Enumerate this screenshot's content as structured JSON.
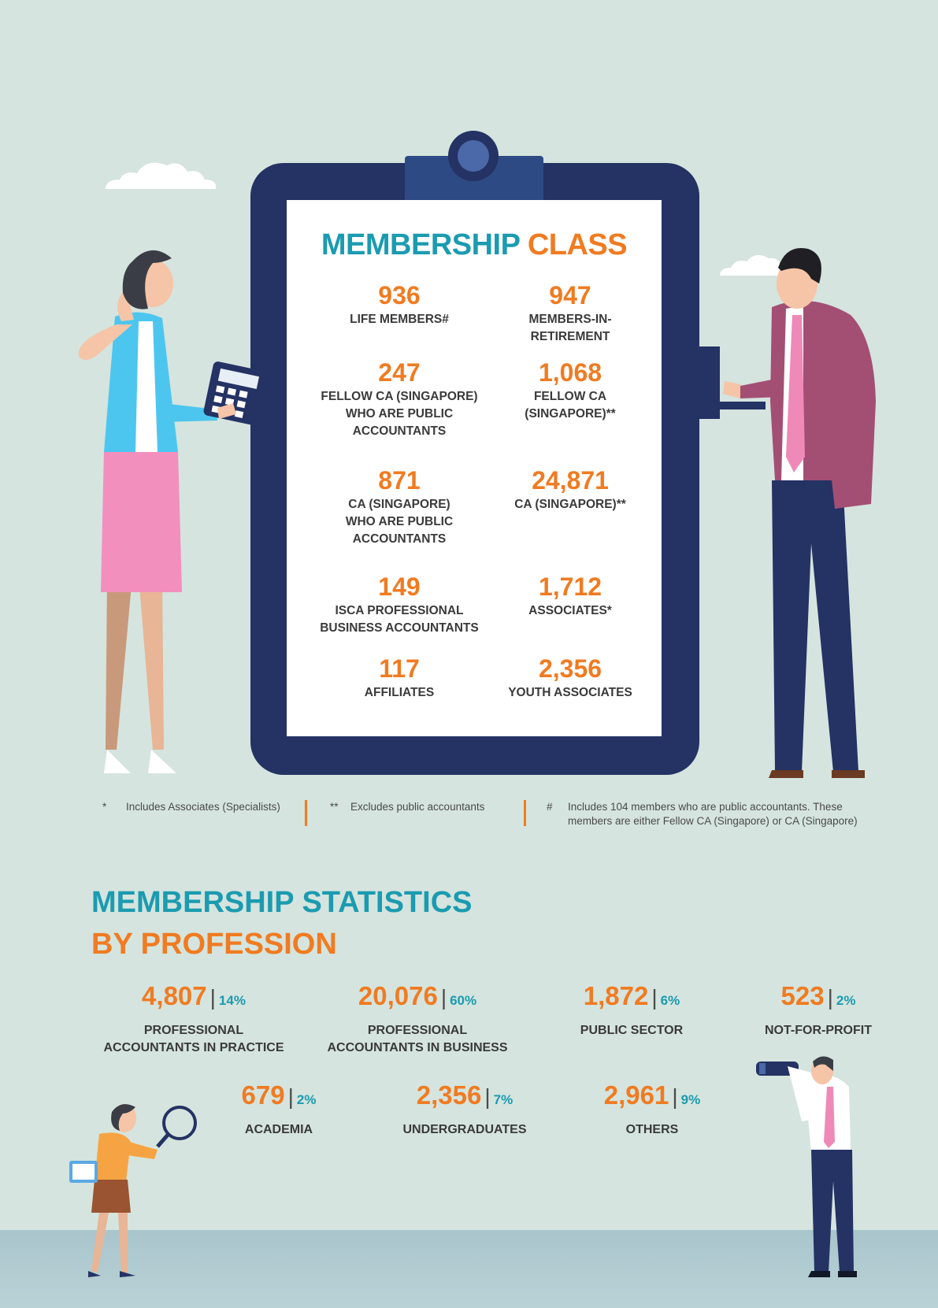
{
  "membership_class": {
    "title_part1": "MEMBERSHIP",
    "title_part2": "CLASS",
    "items": [
      {
        "value": "936",
        "label": "LIFE MEMBERS#"
      },
      {
        "value": "947",
        "label": "MEMBERS-IN-\nRETIREMENT"
      },
      {
        "value": "247",
        "label": "FELLOW CA (SINGAPORE)\nWHO ARE PUBLIC\nACCOUNTANTS"
      },
      {
        "value": "1,068",
        "label": "FELLOW CA\n(SINGAPORE)**"
      },
      {
        "value": "871",
        "label": "CA (SINGAPORE)\nWHO ARE PUBLIC\nACCOUNTANTS"
      },
      {
        "value": "24,871",
        "label": "CA (SINGAPORE)**"
      },
      {
        "value": "149",
        "label": "ISCA PROFESSIONAL\nBUSINESS ACCOUNTANTS"
      },
      {
        "value": "1,712",
        "label": "ASSOCIATES*"
      },
      {
        "value": "117",
        "label": "AFFILIATES"
      },
      {
        "value": "2,356",
        "label": "YOUTH ASSOCIATES"
      }
    ]
  },
  "footnotes": [
    {
      "mark": "*",
      "text": "Includes Associates (Specialists)"
    },
    {
      "mark": "**",
      "text": "Excludes public accountants"
    },
    {
      "mark": "#",
      "text": "Includes 104 members who are public accountants. These\nmembers are either Fellow CA (Singapore) or CA (Singapore)"
    }
  ],
  "profession": {
    "title_line1": "MEMBERSHIP STATISTICS",
    "title_line2": "BY PROFESSION",
    "items": [
      {
        "value": "4,807",
        "pct": "14%",
        "label": "PROFESSIONAL\nACCOUNTANTS IN PRACTICE"
      },
      {
        "value": "20,076",
        "pct": "60%",
        "label": "PROFESSIONAL\nACCOUNTANTS IN BUSINESS"
      },
      {
        "value": "1,872",
        "pct": "6%",
        "label": "PUBLIC SECTOR"
      },
      {
        "value": "523",
        "pct": "2%",
        "label": "NOT-FOR-PROFIT"
      },
      {
        "value": "679",
        "pct": "2%",
        "label": "ACADEMIA"
      },
      {
        "value": "2,356",
        "pct": "7%",
        "label": "UNDERGRADUATES"
      },
      {
        "value": "2,961",
        "pct": "9%",
        "label": "OTHERS"
      }
    ]
  },
  "colors": {
    "teal": "#1b9bb0",
    "orange": "#f07b21",
    "navy": "#243264",
    "background": "#d5e4de"
  }
}
